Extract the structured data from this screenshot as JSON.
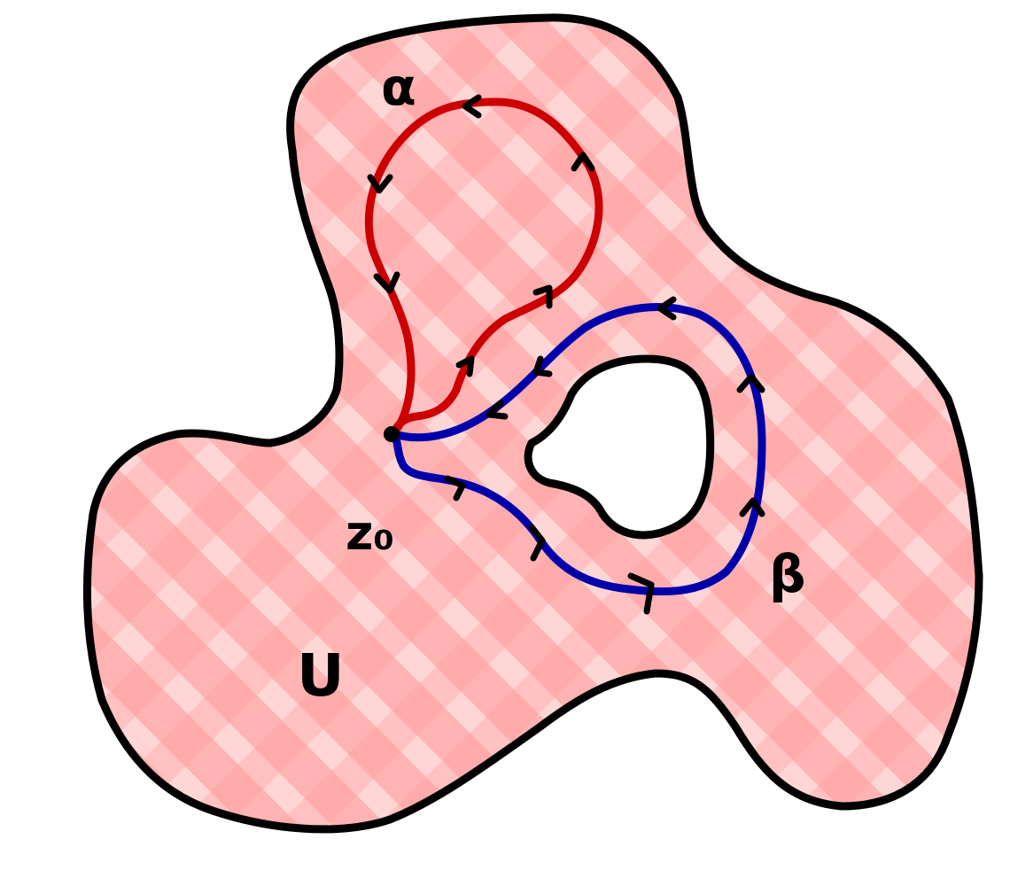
{
  "labels": {
    "alpha": "α",
    "beta": "β",
    "basepoint": "z₀",
    "region": "U"
  },
  "colors": {
    "outline": "#000000",
    "region_fill": "#ff8080",
    "loop_alpha": "#cc0000",
    "loop_beta": "#0000aa",
    "background": "#ffffff"
  }
}
